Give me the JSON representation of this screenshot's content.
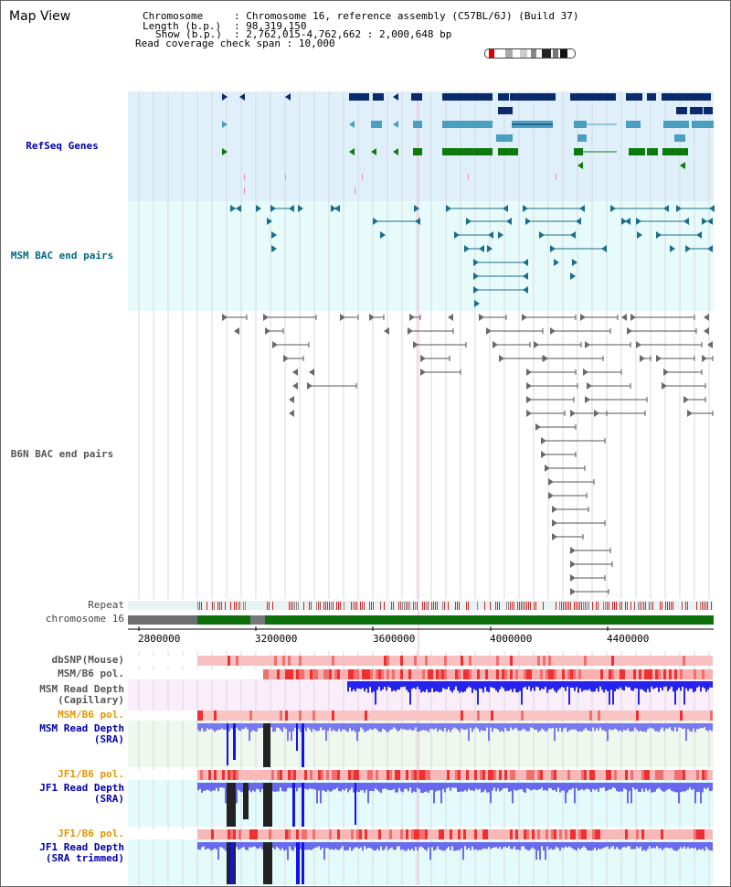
{
  "page": {
    "title": "Map View"
  },
  "info": {
    "chromosome_label": "Chromosome",
    "chromosome_value": "Chromosome 16, reference assembly (C57BL/6J) (Build 37)",
    "length_label": "Length (b.p.)",
    "length_value": "98,319,150",
    "show_label": "Show (b.p.)",
    "show_value": "2,762,015-4,762,662 : 2,000,648 bp",
    "coverage_label": "Read coverage check span",
    "coverage_value": "10,000"
  },
  "tracks": {
    "refseq": "RefSeq Genes",
    "msm_bac": "MSM BAC end pairs",
    "b6n_bac": "B6N BAC end pairs",
    "repeat": "Repeat",
    "chromosome": "chromosome 16",
    "dbsnp": "dbSNP(Mouse)",
    "msm_b6_pol_1": "MSM/B6 pol.",
    "msm_depth_cap_1": "MSM Read Depth",
    "msm_depth_cap_2": "(Capillary)",
    "msm_b6_pol_2": "MSM/B6 pol.",
    "msm_depth_sra_1": "MSM Read Depth",
    "msm_depth_sra_2": "(SRA)",
    "jf1_b6_pol_1": "JF1/B6 pol.",
    "jf1_depth_sra_1": "JF1 Read Depth",
    "jf1_depth_sra_2": "(SRA)",
    "jf1_b6_pol_2": "JF1/B6 pol.",
    "jf1_depth_trim_1": "JF1 Read Depth",
    "jf1_depth_trim_2": "(SRA trimmed)"
  },
  "axis": {
    "ticks": [
      "2800000",
      "3200000",
      "3600000",
      "4000000",
      "4400000"
    ]
  },
  "colors": {
    "refseq_bg": "#dff0fb",
    "msm_bg": "#e8fbfb",
    "depth_bg_pink": "#fbeefb",
    "depth_bg_green": "#eef8ee",
    "depth_bg_cyan": "#e4fbfb",
    "gene_navy": "#0b2a6b",
    "gene_teal": "#4a9ec0",
    "gene_green": "#0d7a0d",
    "bac_teal": "#1a6e8c",
    "bac_gray": "#6a6a6a",
    "depth_blue": "#2020ff",
    "pol_red": "#ee3030"
  }
}
